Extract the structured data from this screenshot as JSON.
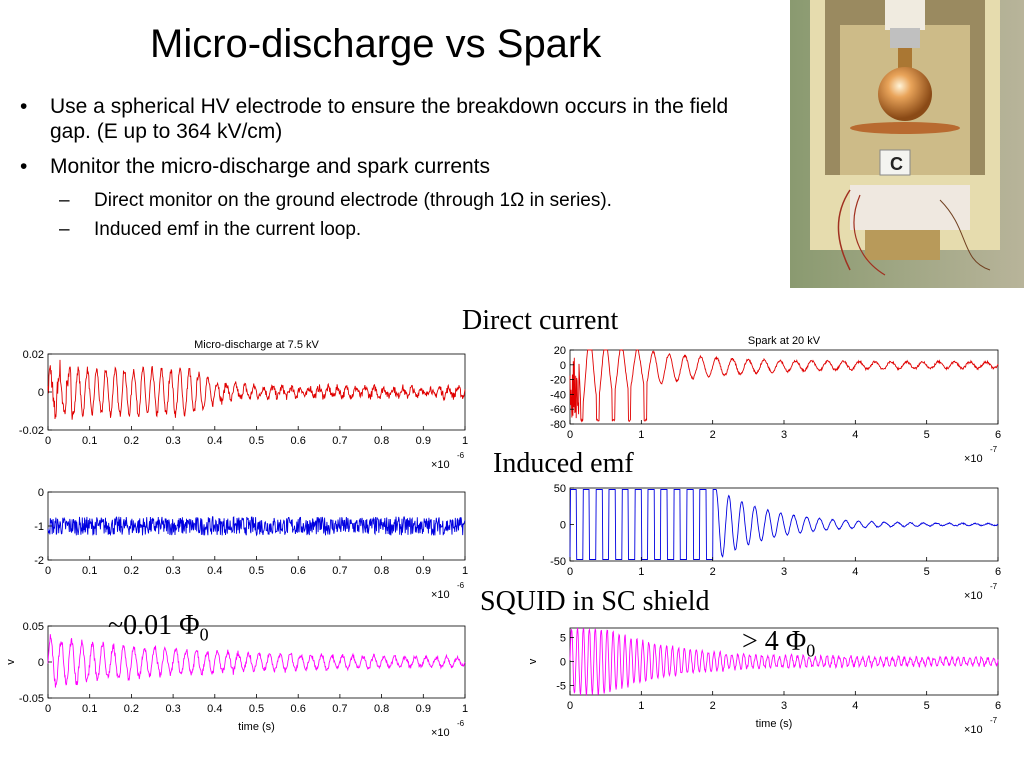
{
  "slide": {
    "title": "Micro-discharge vs Spark",
    "bullets": [
      {
        "text": "Use a spherical HV electrode to ensure the breakdown occurs in the field gap. (E up to 364 kV/cm)",
        "level": 1
      },
      {
        "text": "Monitor the micro-discharge and spark currents",
        "level": 1
      },
      {
        "text": "Direct monitor on the ground electrode (through 1Ω in series).",
        "level": 2
      },
      {
        "text": "Induced emf in the current loop.",
        "level": 2
      }
    ],
    "labels": {
      "direct_current": "Direct current",
      "induced_emf": "Induced emf",
      "squid": "SQUID in SC shield",
      "flux_small": "~0.01 Φ",
      "flux_small_sub": "0",
      "flux_large": "> 4 Φ",
      "flux_large_sub": "0"
    },
    "photo": {
      "label": "C"
    }
  },
  "chart_data": [
    {
      "type": "line",
      "title": "Micro-discharge at 7.5 kV",
      "xlim": [
        0,
        1
      ],
      "ylim": [
        -0.02,
        0.02
      ],
      "x_ticks": [
        "0",
        "0.1",
        "0.2",
        "0.3",
        "0.4",
        "0.5",
        "0.6",
        "0.7",
        "0.8",
        "0.9",
        "1"
      ],
      "y_ticks": [
        "0.02",
        "0",
        "-0.02"
      ],
      "x_multiplier": "×10",
      "x_exp": "-6",
      "ylabel": "",
      "xlabel": "",
      "color": "#e00000",
      "series": [
        {
          "signal": "burst oscillation decaying to noise"
        }
      ]
    },
    {
      "type": "line",
      "title": "",
      "xlim": [
        0,
        1
      ],
      "ylim": [
        -2,
        0
      ],
      "x_ticks": [
        "0",
        "0.1",
        "0.2",
        "0.3",
        "0.4",
        "0.5",
        "0.6",
        "0.7",
        "0.8",
        "0.9",
        "1"
      ],
      "y_ticks": [
        "0",
        "-1",
        "-2"
      ],
      "x_multiplier": "×10",
      "x_exp": "-6",
      "ylabel": "",
      "xlabel": "",
      "color": "#0000e0",
      "series": [
        {
          "signal": "noise around -1"
        }
      ]
    },
    {
      "type": "line",
      "title": "",
      "xlim": [
        0,
        1
      ],
      "ylim": [
        -0.05,
        0.05
      ],
      "x_ticks": [
        "0",
        "0.1",
        "0.2",
        "0.3",
        "0.4",
        "0.5",
        "0.6",
        "0.7",
        "0.8",
        "0.9",
        "1"
      ],
      "y_ticks": [
        "0.05",
        "0",
        "-0.05"
      ],
      "x_multiplier": "×10",
      "x_exp": "-6",
      "ylabel": "v",
      "xlabel": "time (s)",
      "color": "#ff00ff",
      "series": [
        {
          "signal": "noisy oscillation decaying"
        }
      ]
    },
    {
      "type": "line",
      "title": "Spark at 20 kV",
      "xlim": [
        0,
        6
      ],
      "ylim": [
        -80,
        20
      ],
      "x_ticks": [
        "0",
        "1",
        "2",
        "3",
        "4",
        "5",
        "6"
      ],
      "y_ticks": [
        "20",
        "0",
        "-20",
        "-40",
        "-60",
        "-80"
      ],
      "x_multiplier": "×10",
      "x_exp": "-7",
      "ylabel": "",
      "xlabel": "",
      "color": "#e00000",
      "series": [
        {
          "signal": "large negative spikes then damped oscillation"
        }
      ]
    },
    {
      "type": "line",
      "title": "",
      "xlim": [
        0,
        6
      ],
      "ylim": [
        -50,
        50
      ],
      "x_ticks": [
        "0",
        "1",
        "2",
        "3",
        "4",
        "5",
        "6"
      ],
      "y_ticks": [
        "50",
        "0",
        "-50"
      ],
      "x_multiplier": "×10",
      "x_exp": "-7",
      "ylabel": "",
      "xlabel": "",
      "color": "#0000e0",
      "series": [
        {
          "signal": "saturated square wave then damped oscillation"
        }
      ]
    },
    {
      "type": "line",
      "title": "",
      "xlim": [
        0,
        6
      ],
      "ylim": [
        -7,
        7
      ],
      "x_ticks": [
        "0",
        "1",
        "2",
        "3",
        "4",
        "5",
        "6"
      ],
      "y_ticks": [
        "5",
        "0",
        "-5"
      ],
      "x_multiplier": "×10",
      "x_exp": "-7",
      "ylabel": "v",
      "xlabel": "time (s)",
      "color": "#ff00ff",
      "series": [
        {
          "signal": "large oscillation decaying"
        }
      ]
    }
  ]
}
